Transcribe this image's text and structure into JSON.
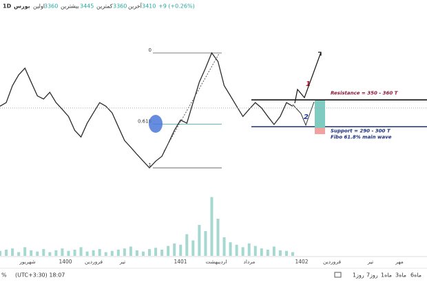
{
  "header": {
    "interval": "1D",
    "symbol": "بورس",
    "items": [
      "اولین",
      "3360",
      "بیشترین",
      "3445",
      "کمترین",
      "3360",
      "آخرین",
      "3410",
      "+9 (+0.26%)"
    ]
  },
  "chart_data": {
    "type": "line",
    "color": "#2a2a2a",
    "values": [
      341,
      349,
      387,
      411,
      426,
      395,
      364,
      357,
      372,
      349,
      334,
      318,
      287,
      272,
      303,
      326,
      349,
      341,
      326,
      295,
      264,
      249,
      233,
      218,
      203,
      218,
      229,
      257,
      287,
      310,
      303,
      349,
      395,
      426,
      460,
      441,
      387,
      364,
      341,
      318,
      334,
      349,
      337,
      318,
      300,
      318,
      349,
      341
    ],
    "ylim": [
      0,
      560
    ],
    "volume": {
      "color": "#7fc7bd",
      "values": [
        8,
        10,
        12,
        6,
        14,
        9,
        7,
        11,
        6,
        9,
        12,
        8,
        10,
        14,
        7,
        9,
        11,
        6,
        8,
        10,
        12,
        15,
        9,
        7,
        11,
        13,
        10,
        16,
        20,
        18,
        35,
        25,
        50,
        40,
        95,
        60,
        30,
        22,
        18,
        14,
        20,
        16,
        12,
        10,
        15,
        9,
        8,
        6
      ],
      "vlim": [
        0,
        100
      ]
    },
    "fib_levels": [
      {
        "label": "0",
        "value": 460
      },
      {
        "label": "0.618",
        "value": 301
      },
      {
        "label": "1",
        "value": 203
      }
    ],
    "levels": [
      {
        "label": "Resistance = 350 - 360 T",
        "value": 355,
        "color": "#000",
        "text_color": "#8b1a3a"
      },
      {
        "label": "Support = 290 - 300 T",
        "value": 295,
        "color": "#1a2f7a",
        "text_color": "#1a2f7a"
      }
    ],
    "note": "Fibo 61.8% main wave",
    "wave_labels": [
      "1",
      "2"
    ],
    "x_labels": [
      "شهریور",
      "1400",
      "فروردین",
      "تیر",
      "1401",
      "اردیبهشت",
      "مرداد",
      "1402",
      "فروردین",
      "تیر",
      "مهر"
    ]
  },
  "footer": {
    "left_pct": "%",
    "time": "(UTC+3:30) 18:07",
    "ranges": [
      "1روز",
      "7روز",
      "1ماه",
      "3ماه",
      "6ماه"
    ]
  }
}
